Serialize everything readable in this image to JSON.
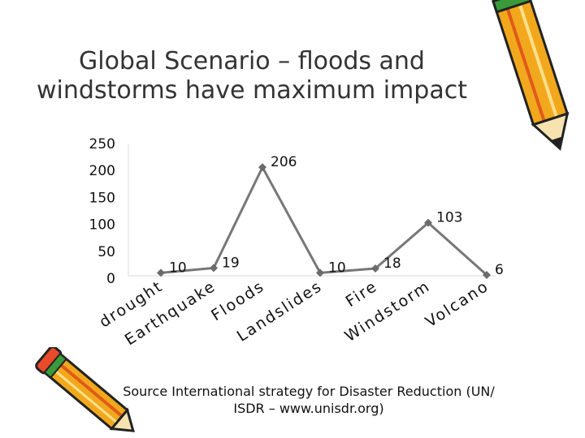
{
  "slide": {
    "title_line1": "Global Scenario – floods and",
    "title_line2": "windstorms have maximum impact",
    "source_line1": "Source International strategy for Disaster Reduction (UN/",
    "source_line2": "ISDR – www.unisdr.org)"
  },
  "decorations": {
    "top_right": "pencil-icon",
    "bottom_left": "pencil-icon"
  },
  "chart_data": {
    "type": "line",
    "categories": [
      "drought",
      "Earthquake",
      "Floods",
      "Landslides",
      "Fire",
      "Windstorm",
      "Volcano"
    ],
    "values": [
      10,
      19,
      206,
      10,
      18,
      103,
      6
    ],
    "yticks": [
      0,
      50,
      100,
      150,
      200,
      250
    ],
    "ylim": [
      0,
      250
    ],
    "grid": false,
    "legend": "none",
    "line_color": "#777777",
    "marker_color": "#6b6b6b"
  }
}
